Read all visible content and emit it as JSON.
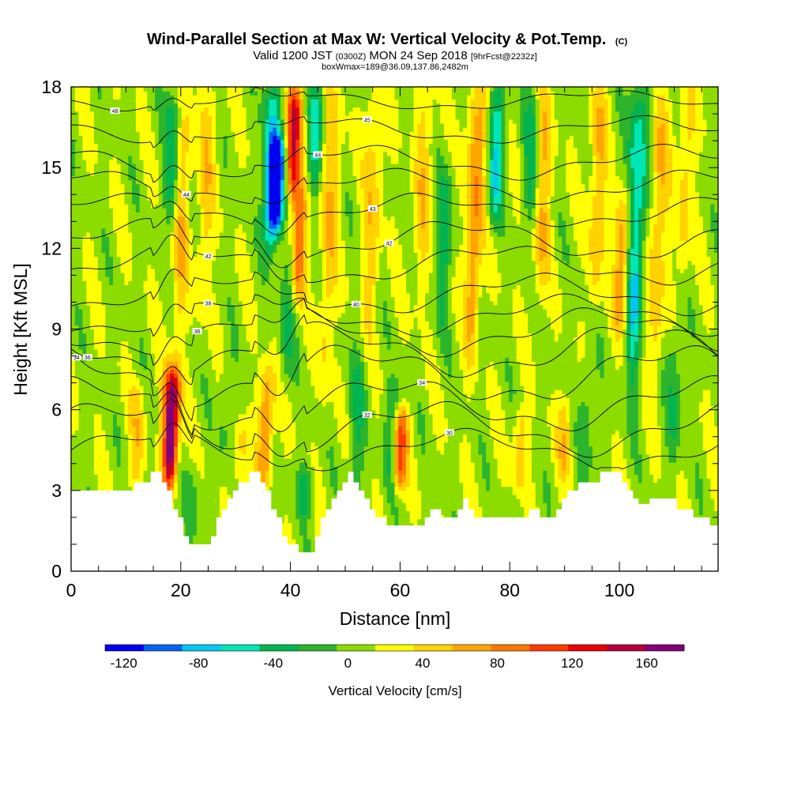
{
  "chart_data": {
    "type": "heatmap",
    "title": "Wind-Parallel Section at Max W: Vertical Velocity & Pot.Temp.",
    "title_mark": "(C)",
    "subtitle_valid": "Valid 1200 JST",
    "subtitle_utc": "(0300Z)",
    "subtitle_date": "MON 24 Sep 2018",
    "subtitle_fcst": "[9hrFcst@2232z]",
    "subtitle2": "boxWmax=189@36.09,137.86,2482m",
    "xlabel": "Distance [nm]",
    "ylabel": "Height [Kft MSL]",
    "xlim": [
      0,
      118
    ],
    "ylim": [
      0,
      18
    ],
    "x_ticks": [
      0,
      20,
      40,
      60,
      80,
      100
    ],
    "y_ticks": [
      0,
      3,
      6,
      9,
      12,
      15,
      18
    ],
    "colorbar": {
      "label": "Vertical Velocity [cm/s]",
      "min": -130,
      "max": 180,
      "step": 20,
      "tick_values": [
        -120,
        -80,
        -40,
        0,
        40,
        80,
        120,
        160
      ],
      "colors": [
        "#0000f0",
        "#0064f0",
        "#00c8f0",
        "#00e6b4",
        "#00b450",
        "#2db42d",
        "#8cdc00",
        "#ffff00",
        "#ffd200",
        "#ffa500",
        "#ff7800",
        "#ff3c00",
        "#e60000",
        "#b4003c",
        "#820078"
      ]
    },
    "background_w": 5,
    "updrafts": [
      {
        "x": 12,
        "w": 35,
        "z0": 3,
        "z1": 7
      },
      {
        "x": 18.2,
        "w": 175,
        "z0": 3.2,
        "z1": 7.5
      },
      {
        "x": 20,
        "w": 40,
        "z0": 8,
        "z1": 18
      },
      {
        "x": 24.5,
        "w": 35,
        "z0": 10,
        "z1": 18
      },
      {
        "x": 31,
        "w": 30,
        "z0": 3,
        "z1": 5.5
      },
      {
        "x": 35.5,
        "w": 70,
        "z0": 3.2,
        "z1": 7.5
      },
      {
        "x": 40.5,
        "w": 125,
        "z0": 14,
        "z1": 18
      },
      {
        "x": 41.5,
        "w": 80,
        "z0": 10,
        "z1": 14.5
      },
      {
        "x": 47,
        "w": 40,
        "z0": 7,
        "z1": 18
      },
      {
        "x": 55,
        "w": 40,
        "z0": 9,
        "z1": 18
      },
      {
        "x": 60,
        "w": 95,
        "z0": 3,
        "z1": 6
      },
      {
        "x": 64,
        "w": 35,
        "z0": 10,
        "z1": 18
      },
      {
        "x": 73.5,
        "w": 65,
        "z0": 8,
        "z1": 18
      },
      {
        "x": 82,
        "w": 40,
        "z0": 3,
        "z1": 6
      },
      {
        "x": 86,
        "w": 45,
        "z0": 10,
        "z1": 18
      },
      {
        "x": 90,
        "w": 40,
        "z0": 3.5,
        "z1": 6.5
      },
      {
        "x": 96,
        "w": 45,
        "z0": 10,
        "z1": 18
      },
      {
        "x": 100.5,
        "w": 70,
        "z0": 9,
        "z1": 14
      },
      {
        "x": 107,
        "w": 45,
        "z0": 7,
        "z1": 18
      },
      {
        "x": 112,
        "w": 35,
        "z0": 11,
        "z1": 18
      }
    ],
    "downdrafts": [
      {
        "x": 18.5,
        "w": -60,
        "z0": 13,
        "z1": 18
      },
      {
        "x": 22,
        "w": -25,
        "z0": 1,
        "z1": 4
      },
      {
        "x": 28,
        "w": -20,
        "z0": 4,
        "z1": 8
      },
      {
        "x": 36.5,
        "w": -90,
        "z0": 12,
        "z1": 18
      },
      {
        "x": 37.6,
        "w": -130,
        "z0": 12.5,
        "z1": 16
      },
      {
        "x": 39.5,
        "w": -35,
        "z0": 7,
        "z1": 12
      },
      {
        "x": 42.5,
        "w": -40,
        "z0": 2,
        "z1": 4
      },
      {
        "x": 44.5,
        "w": -60,
        "z0": 14,
        "z1": 18
      },
      {
        "x": 52,
        "w": -35,
        "z0": 2,
        "z1": 8
      },
      {
        "x": 58.5,
        "w": -40,
        "z0": 3,
        "z1": 7
      },
      {
        "x": 68,
        "w": -40,
        "z0": 9,
        "z1": 15
      },
      {
        "x": 77.5,
        "w": -70,
        "z0": 13,
        "z1": 18
      },
      {
        "x": 84,
        "w": -45,
        "z0": 13,
        "z1": 18
      },
      {
        "x": 94,
        "w": -30,
        "z0": 3,
        "z1": 8
      },
      {
        "x": 103,
        "w": -80,
        "z0": 7,
        "z1": 18
      },
      {
        "x": 110,
        "w": -35,
        "z0": 4,
        "z1": 9
      }
    ],
    "terrain_height": [
      3.0,
      3.0,
      3.0,
      3.0,
      3.0,
      3.0,
      3.0,
      3.0,
      3.0,
      3.0,
      3.0,
      3.0,
      3.3,
      3.3,
      3.3,
      3.7,
      3.7,
      3.3,
      3.0,
      2.3,
      2.0,
      1.3,
      1.0,
      1.0,
      1.0,
      1.0,
      1.3,
      2.0,
      2.3,
      2.7,
      3.0,
      3.3,
      3.3,
      3.7,
      3.7,
      3.3,
      3.0,
      2.3,
      2.0,
      1.3,
      1.0,
      1.0,
      0.7,
      0.7,
      0.7,
      1.3,
      2.0,
      2.3,
      2.7,
      3.0,
      3.3,
      3.7,
      3.3,
      3.0,
      2.7,
      2.3,
      2.0,
      2.0,
      1.7,
      1.7,
      1.7,
      1.7,
      1.7,
      1.7,
      1.7,
      2.0,
      2.3,
      2.3,
      2.0,
      2.0,
      2.0,
      2.3,
      2.7,
      2.3,
      2.0,
      2.0,
      2.0,
      2.0,
      2.0,
      2.0,
      2.0,
      2.0,
      2.0,
      2.0,
      2.3,
      2.3,
      2.0,
      2.0,
      2.0,
      2.3,
      2.7,
      3.0,
      3.0,
      3.3,
      3.3,
      3.3,
      3.3,
      3.7,
      3.7,
      3.7,
      3.7,
      3.3,
      3.0,
      2.7,
      2.5,
      2.5,
      2.7,
      2.7,
      2.7,
      2.7,
      2.7,
      2.3,
      2.3,
      2.3,
      2.0,
      2.0,
      2.0,
      1.7,
      1.7
    ],
    "theta_contours": [
      {
        "base": 4.5,
        "label": "30",
        "lx": 69,
        "amp": 0.6
      },
      {
        "base": 5.3,
        "label": "32",
        "lx": 54,
        "amp": 0.8
      },
      {
        "base": 6.2,
        "label": "34",
        "lx": 64,
        "amp": 0.8
      },
      {
        "base": 7.3,
        "label": "34",
        "lx": 1,
        "amp": 0.9
      },
      {
        "base": 8.2,
        "label": "36",
        "lx": 3,
        "amp": 0.8
      },
      {
        "base": 8.9,
        "label": "36",
        "lx": 23,
        "amp": 0.7
      },
      {
        "base": 9.5,
        "label": "38",
        "lx": 25,
        "amp": 0.6
      },
      {
        "base": 10.3,
        "label": "40",
        "lx": 52,
        "amp": 0.6
      },
      {
        "base": 11.4,
        "label": "42",
        "lx": 25,
        "amp": 0.6
      },
      {
        "base": 12.3,
        "label": "42",
        "lx": 58,
        "amp": 0.6
      },
      {
        "base": 13.4,
        "label": "43",
        "lx": 55,
        "amp": 0.5
      },
      {
        "base": 14.3,
        "label": "44",
        "lx": 21,
        "amp": 0.5
      },
      {
        "base": 15.2,
        "label": "44",
        "lx": 45,
        "amp": 0.5
      },
      {
        "base": 16.4,
        "label": "45",
        "lx": 54,
        "amp": 0.4
      },
      {
        "base": 17.5,
        "label": "48",
        "lx": 8,
        "amp": 0.3
      }
    ]
  }
}
